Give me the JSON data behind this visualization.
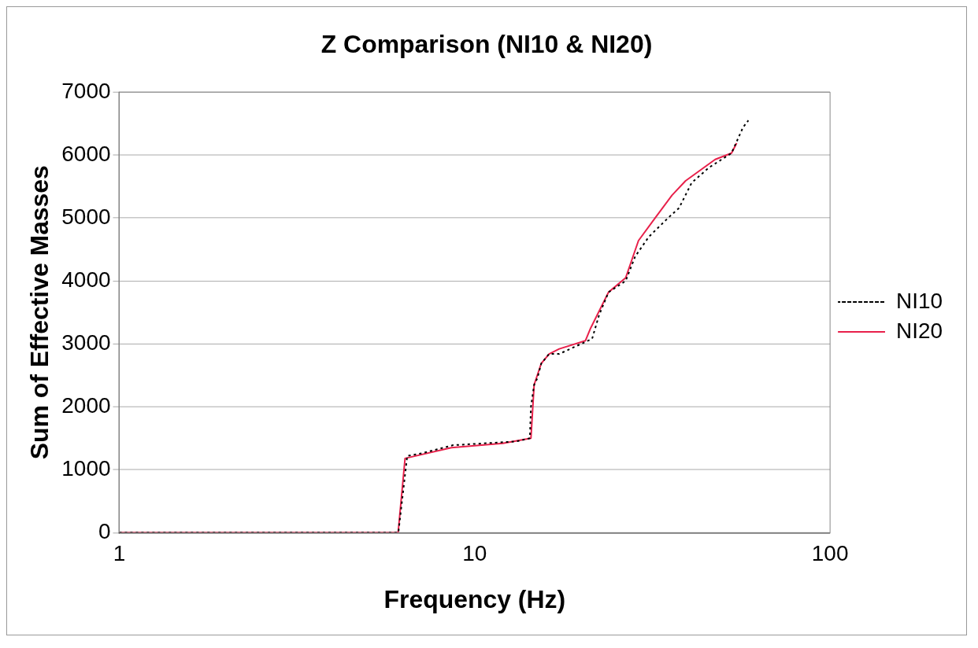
{
  "chart_data": {
    "type": "line",
    "title": "Z Comparison (NI10 & NI20)",
    "xlabel": "Frequency (Hz)",
    "ylabel": "Sum of Effective Masses",
    "log": "x",
    "xlim": [
      1,
      100
    ],
    "xticks": [
      1,
      10,
      100
    ],
    "ylim": [
      0,
      7000
    ],
    "yticks": [
      0,
      1000,
      2000,
      3000,
      4000,
      5000,
      6000,
      7000
    ],
    "grid": "y",
    "legend": "right",
    "marker": "none",
    "series": [
      {
        "name": "NI10",
        "color": "#000000",
        "line_style": "dotted",
        "x": [
          1,
          6.1,
          6.46,
          7.1,
          8.7,
          13.1,
          14.3,
          14.4,
          14.7,
          15,
          15.4,
          16.2,
          17.3,
          21.4,
          22.4,
          23.8,
          26.6,
          28.3,
          30.9,
          35,
          37.6,
          40.8,
          45.6,
          52.8,
          56.9,
          58.9
        ],
        "values": [
          0,
          0,
          1220,
          1260,
          1390,
          1450,
          1500,
          2000,
          2350,
          2450,
          2690,
          2840,
          2840,
          3080,
          3460,
          3820,
          4000,
          4390,
          4700,
          5000,
          5160,
          5560,
          5800,
          6030,
          6440,
          6550
        ]
      },
      {
        "name": "NI20",
        "color": "#e8204a",
        "line_style": "solid",
        "x": [
          1,
          6.09,
          6.37,
          8.6,
          12,
          14.4,
          14.7,
          15.4,
          16.2,
          17.3,
          20.5,
          21.2,
          23.8,
          26.6,
          28.9,
          32.2,
          35.9,
          39.2,
          47.5,
          52.8,
          54.6
        ],
        "values": [
          0,
          0,
          1180,
          1350,
          1420,
          1500,
          2350,
          2690,
          2840,
          2920,
          3050,
          3250,
          3820,
          4050,
          4640,
          5000,
          5360,
          5590,
          5930,
          6030,
          6190
        ]
      }
    ]
  }
}
